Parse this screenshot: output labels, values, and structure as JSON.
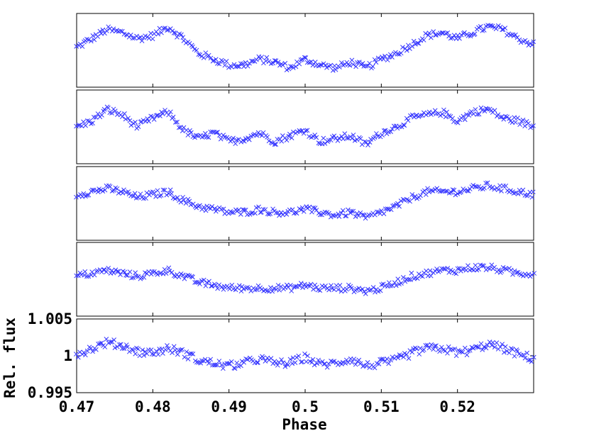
{
  "chart_data": {
    "type": "scatter",
    "marker": "x",
    "color": "#3333ff",
    "xlabel": "Phase",
    "ylabel": "Rel. flux",
    "xlim": [
      0.47,
      0.53
    ],
    "xticks": [
      0.47,
      0.48,
      0.49,
      0.5,
      0.51,
      0.52
    ],
    "xtick_labels": [
      "0.47",
      "0.48",
      "0.49",
      "0.5",
      "0.51",
      "0.52"
    ],
    "panel_count": 5,
    "panels": [
      {
        "yticks": [],
        "ytick_labels": [],
        "x": [
          0.47,
          0.472,
          0.474,
          0.476,
          0.478,
          0.48,
          0.482,
          0.484,
          0.486,
          0.488,
          0.49,
          0.492,
          0.494,
          0.496,
          0.498,
          0.5,
          0.502,
          0.504,
          0.506,
          0.508,
          0.51,
          0.512,
          0.514,
          0.516,
          0.518,
          0.52,
          0.522,
          0.524,
          0.526,
          0.528,
          0.53
        ],
        "y": [
          1.0002,
          1.0008,
          1.0014,
          1.0012,
          1.0008,
          1.001,
          1.0016,
          1.0008,
          0.9998,
          0.9994,
          0.999,
          0.999,
          0.9994,
          0.9992,
          0.9988,
          0.9994,
          0.999,
          0.9988,
          0.9992,
          0.9988,
          0.9994,
          0.9998,
          1.0004,
          1.001,
          1.0012,
          1.0008,
          1.0012,
          1.0016,
          1.0014,
          1.0008,
          1.0004
        ]
      },
      {
        "yticks": [],
        "ytick_labels": [],
        "x": [
          0.47,
          0.472,
          0.474,
          0.476,
          0.478,
          0.48,
          0.482,
          0.484,
          0.486,
          0.488,
          0.49,
          0.492,
          0.494,
          0.496,
          0.498,
          0.5,
          0.502,
          0.504,
          0.506,
          0.508,
          0.51,
          0.512,
          0.514,
          0.516,
          0.518,
          0.52,
          0.522,
          0.524,
          0.526,
          0.528,
          0.53
        ],
        "y": [
          1.0,
          1.0004,
          1.0012,
          1.0008,
          1.0,
          1.0006,
          1.001,
          0.9998,
          0.9992,
          0.9996,
          0.999,
          0.9992,
          0.9996,
          0.999,
          0.9994,
          0.9998,
          0.999,
          0.9992,
          0.9994,
          0.9988,
          0.9996,
          1.0,
          1.0006,
          1.0008,
          1.001,
          1.0004,
          1.001,
          1.0012,
          1.0006,
          1.0004,
          1.0
        ]
      },
      {
        "yticks": [],
        "ytick_labels": [],
        "x": [
          0.47,
          0.472,
          0.474,
          0.476,
          0.478,
          0.48,
          0.482,
          0.484,
          0.486,
          0.488,
          0.49,
          0.492,
          0.494,
          0.496,
          0.498,
          0.5,
          0.502,
          0.504,
          0.506,
          0.508,
          0.51,
          0.512,
          0.514,
          0.516,
          0.518,
          0.52,
          0.522,
          0.524,
          0.526,
          0.528,
          0.53
        ],
        "y": [
          1.0006,
          1.0008,
          1.001,
          1.0008,
          1.0004,
          1.0006,
          1.0008,
          1.0002,
          0.9998,
          0.9996,
          0.9994,
          0.9994,
          0.9996,
          0.9994,
          0.9994,
          0.9996,
          0.9994,
          0.9992,
          0.9994,
          0.999,
          0.9994,
          0.9998,
          1.0004,
          1.0008,
          1.0008,
          1.0008,
          1.001,
          1.0012,
          1.001,
          1.0008,
          1.0006
        ]
      },
      {
        "yticks": [],
        "ytick_labels": [],
        "x": [
          0.47,
          0.472,
          0.474,
          0.476,
          0.478,
          0.48,
          0.482,
          0.484,
          0.486,
          0.488,
          0.49,
          0.492,
          0.494,
          0.496,
          0.498,
          0.5,
          0.502,
          0.504,
          0.506,
          0.508,
          0.51,
          0.512,
          0.514,
          0.516,
          0.518,
          0.52,
          0.522,
          0.524,
          0.526,
          0.528,
          0.53
        ],
        "y": [
          1.0002,
          1.0004,
          1.0006,
          1.0004,
          1.0002,
          1.0004,
          1.0006,
          1.0002,
          0.9998,
          0.9996,
          0.9994,
          0.9994,
          0.9994,
          0.9994,
          0.9994,
          0.9996,
          0.9994,
          0.9994,
          0.9994,
          0.9992,
          0.9994,
          0.9998,
          1.0002,
          1.0004,
          1.0006,
          1.0006,
          1.0008,
          1.0008,
          1.0006,
          1.0004,
          1.0004
        ]
      },
      {
        "ylim": [
          0.995,
          1.005
        ],
        "yticks": [
          0.995,
          1,
          1.005
        ],
        "ytick_labels": [
          "0.995",
          "1",
          "1.005"
        ],
        "x": [
          0.47,
          0.472,
          0.474,
          0.476,
          0.478,
          0.48,
          0.482,
          0.484,
          0.486,
          0.488,
          0.49,
          0.492,
          0.494,
          0.496,
          0.498,
          0.5,
          0.502,
          0.504,
          0.506,
          0.508,
          0.51,
          0.512,
          0.514,
          0.516,
          0.518,
          0.52,
          0.522,
          0.524,
          0.526,
          0.528,
          0.53
        ],
        "y": [
          1.0002,
          1.001,
          1.0018,
          1.0014,
          1.0006,
          1.0004,
          1.001,
          1.0004,
          0.9994,
          0.999,
          0.9986,
          0.999,
          0.9996,
          0.999,
          0.999,
          0.9998,
          0.9988,
          0.999,
          0.9996,
          0.9986,
          0.999,
          0.9994,
          1.0004,
          1.001,
          1.001,
          1.0004,
          1.0008,
          1.0016,
          1.001,
          1.0002,
          0.9996
        ]
      }
    ]
  }
}
